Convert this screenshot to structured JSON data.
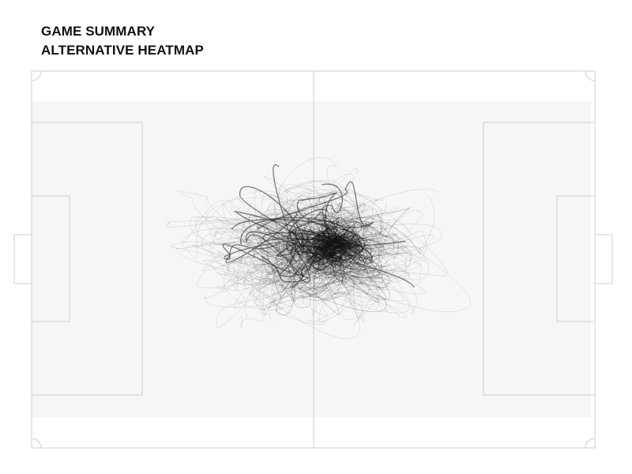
{
  "header": {
    "title": "GAME SUMMARY",
    "subtitle": "ALTERNATIVE HEATMAP"
  },
  "colors": {
    "background": "#ffffff",
    "title_text": "#111111",
    "pitch_lines": "#cfcfcf",
    "heat_zone": "#f6f6f6",
    "trace": "#111111"
  },
  "pitch": {
    "view": "full-pitch",
    "orientation": "horizontal"
  },
  "heatmap": {
    "style": "tangled movement traces",
    "hotspot": "center circle, right of halfway line"
  }
}
